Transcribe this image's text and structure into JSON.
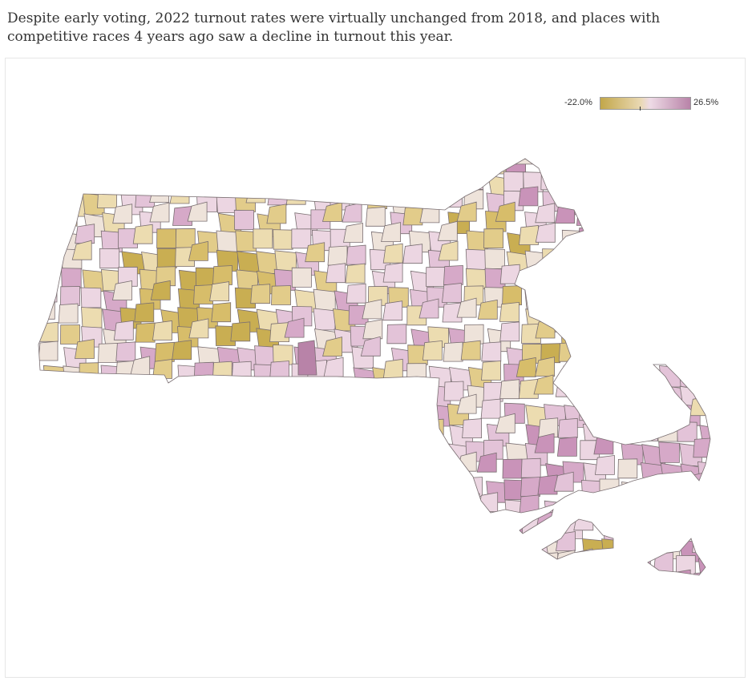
{
  "headline": "Despite early voting, 2022 turnout rates were virtually unchanged from 2018, and places with competitive races 4 years ago saw a decline in turnout this year.",
  "legend": {
    "min_label": "-22.0%",
    "max_label": "26.5%",
    "min_value": -22.0,
    "max_value": 26.5,
    "colors": [
      "#c2a74a",
      "#ead9b4",
      "#eedbe6",
      "#b883a8"
    ]
  },
  "map": {
    "region": "Massachusetts municipalities",
    "metric": "change in turnout rate, 2022 vs 2018"
  }
}
